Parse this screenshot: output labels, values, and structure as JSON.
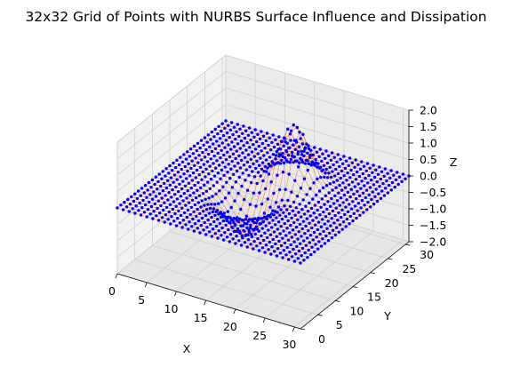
{
  "chart_data": {
    "type": "scatter",
    "projection": "3d",
    "title": "32x32 Grid of Points with NURBS Surface Influence and Dissipation",
    "xlabel": "X",
    "ylabel": "Y",
    "zlabel": "Z",
    "xlim": [
      0,
      31
    ],
    "ylim": [
      0,
      31
    ],
    "zlim": [
      -2,
      2
    ],
    "xticks": [
      "0",
      "5",
      "10",
      "15",
      "20",
      "25",
      "30"
    ],
    "yticks": [
      "0",
      "5",
      "10",
      "15",
      "20",
      "25",
      "30"
    ],
    "zticks": [
      "2.0",
      "1.5",
      "1.0",
      "0.5",
      "0.0",
      "−0.5",
      "−1.0",
      "−1.5",
      "−2.0"
    ],
    "grid": true,
    "grid_size": [
      32,
      32
    ],
    "points_color": "#0000ff",
    "lines_color": "#ff4500",
    "surface": {
      "description": "z = 0 everywhere except a localized NURBS-influenced bump near the grid centre",
      "center": [
        16,
        16
      ],
      "peak_z": 1.8,
      "trough_z": -1.2,
      "radius": 6
    }
  }
}
